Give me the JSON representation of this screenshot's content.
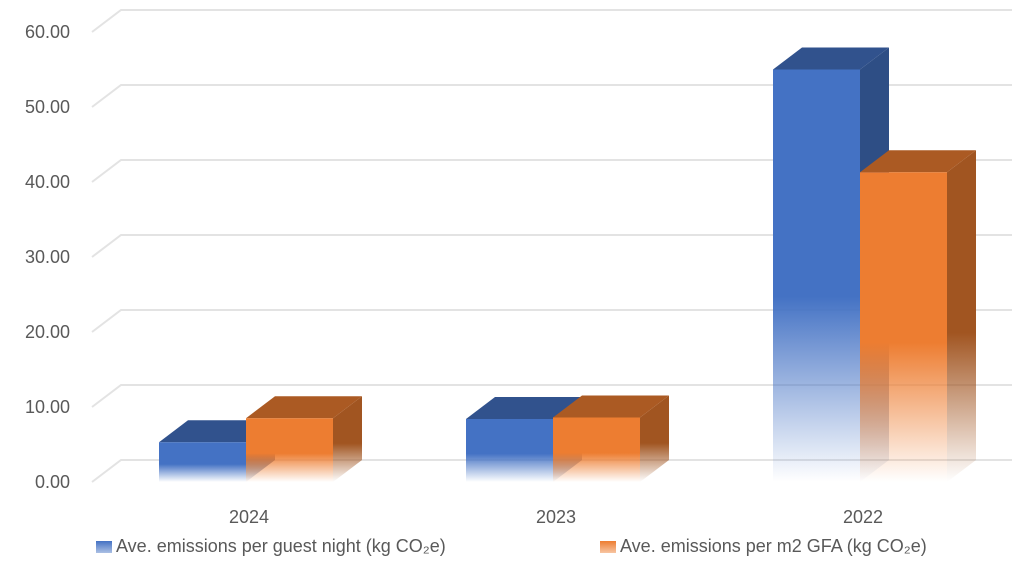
{
  "chart_data": {
    "type": "bar",
    "title": "",
    "xlabel": "",
    "ylabel": "",
    "categories": [
      "2024",
      "2023",
      "2022"
    ],
    "series": [
      {
        "name": "Ave. emissions per guest night (kg CO₂e)",
        "color": "#4472C4",
        "values": [
          5.3,
          8.4,
          55.0
        ]
      },
      {
        "name": "Ave. emissions per m2 GFA (kg CO₂e)",
        "color": "#ED7D31",
        "values": [
          8.5,
          8.6,
          41.3
        ]
      }
    ],
    "ylim": [
      0,
      60
    ],
    "yticks": [
      "0.00",
      "10.00",
      "20.00",
      "30.00",
      "40.00",
      "50.00",
      "60.00"
    ],
    "grid": true,
    "legend": "bottom"
  }
}
